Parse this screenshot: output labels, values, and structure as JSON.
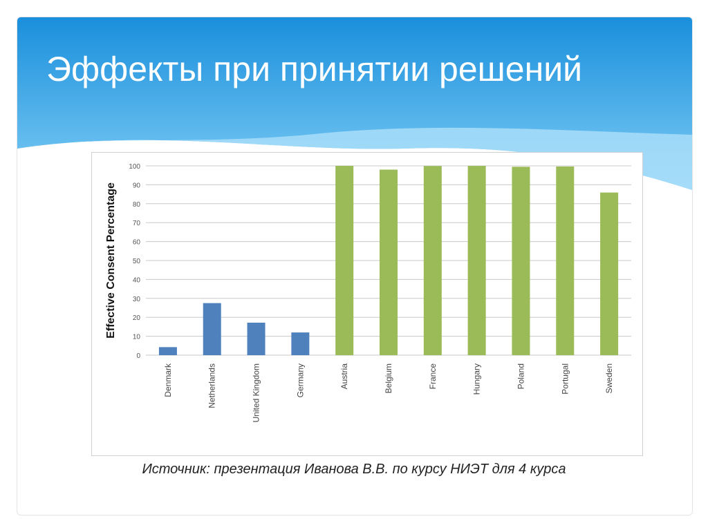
{
  "slide": {
    "title": "Эффекты при принятии решений",
    "caption": "Источник: презентация Иванова В.В. по курсу НИЭТ для 4 курса"
  },
  "colors": {
    "header_top": "#1a8fdc",
    "header_bottom": "#7fcdf5",
    "opt_in": "#4f81bd",
    "opt_out": "#9bbb59"
  },
  "chart_data": {
    "type": "bar",
    "title": "",
    "xlabel": "",
    "ylabel": "Effective Consent Percentage",
    "ylim": [
      0,
      100
    ],
    "yticks": [
      0,
      10,
      20,
      30,
      40,
      50,
      60,
      70,
      80,
      90,
      100
    ],
    "grid": true,
    "categories": [
      "Denmark",
      "Netherlands",
      "United Kingdom",
      "Germany",
      "Austria",
      "Belgium",
      "France",
      "Hungary",
      "Poland",
      "Portugal",
      "Sweden"
    ],
    "values": [
      4.25,
      27.5,
      17.17,
      12,
      99.98,
      98,
      99.91,
      99.97,
      99.5,
      99.64,
      85.9
    ],
    "groups": [
      "opt_in",
      "opt_in",
      "opt_in",
      "opt_in",
      "opt_out",
      "opt_out",
      "opt_out",
      "opt_out",
      "opt_out",
      "opt_out",
      "opt_out"
    ]
  }
}
